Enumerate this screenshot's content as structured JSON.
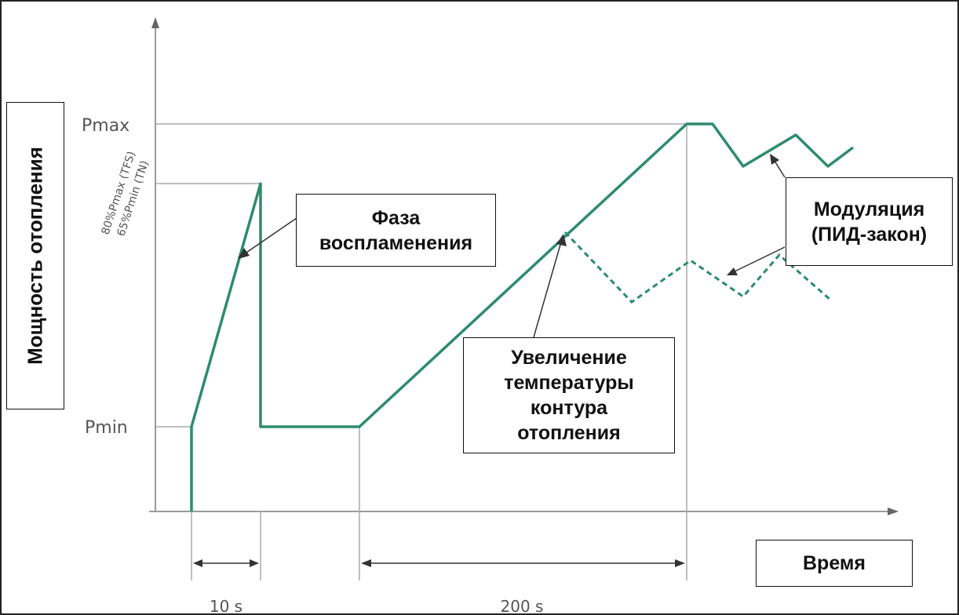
{
  "y_axis_title": "Мощность отопления",
  "x_axis_title": "Время",
  "level_labels": {
    "pmax": "Pmax",
    "pmin": "Pmin",
    "ign1": "80%Pmax (TFS)",
    "ign2": "65%Pmin (TN)"
  },
  "intervals": {
    "ignition": "10 s",
    "ramp": "200 s"
  },
  "callouts": {
    "ignition_phase": "Фаза\nвоспламенения",
    "temperature_rise": "Увеличение\nтемпературы\nконтура\nотопления",
    "modulation": "Модуляция\n(ПИД-закон)"
  },
  "colors": {
    "curve": "#2e8b6e",
    "axis": "#9a9a9a",
    "text": "#555555"
  }
}
